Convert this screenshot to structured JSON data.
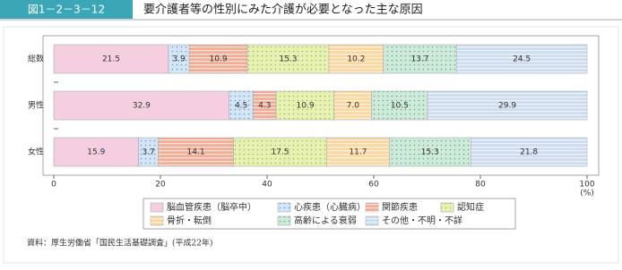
{
  "figure_label": "図1－2－3－12",
  "chart_data": {
    "type": "stacked-bar-horizontal",
    "title": "要介護者等の性別にみた介護が必要となった主な原因",
    "categories": [
      "総数",
      "男性",
      "女性"
    ],
    "series": [
      {
        "name": "脳血管疾患（脳卒中）",
        "color": "#f5cfe0",
        "values": [
          21.5,
          32.9,
          15.9
        ],
        "value_labels": [
          "21.5",
          "32.9",
          "15.9"
        ]
      },
      {
        "name": "心疾患（心臓病）",
        "color": "#d4e5f6",
        "values": [
          3.9,
          4.5,
          3.7
        ],
        "value_labels": [
          "3.9",
          "4.5",
          "3.7"
        ]
      },
      {
        "name": "関節疾患",
        "color": "#f1ad95",
        "values": [
          10.9,
          4.3,
          14.1
        ],
        "value_labels": [
          "10.9",
          "4.3",
          "14.1"
        ]
      },
      {
        "name": "認知症",
        "color": "#e7f1b6",
        "values": [
          15.3,
          10.9,
          17.5
        ],
        "value_labels": [
          "15.3",
          "10.9",
          "17.5"
        ]
      },
      {
        "name": "骨折・転倒",
        "color": "#fcd8a0",
        "values": [
          10.2,
          7.0,
          11.7
        ],
        "value_labels": [
          "10.2",
          "7.0",
          "11.7"
        ]
      },
      {
        "name": "高齢による衰弱",
        "color": "#cfe9da",
        "values": [
          13.7,
          10.5,
          15.3
        ],
        "value_labels": [
          "13.7",
          "10.5",
          "15.3"
        ]
      },
      {
        "name": "その他・不明・不詳",
        "color": "#cddcf1",
        "values": [
          24.5,
          29.9,
          21.8
        ],
        "value_labels": [
          "24.5",
          "29.9",
          "21.8"
        ]
      }
    ],
    "xlim": [
      0,
      100
    ],
    "xticks": [
      0,
      20,
      40,
      60,
      80,
      100
    ],
    "x_unit": "(%)",
    "source": "資料：厚生労働省「国民生活基礎調査」(平成22年)"
  }
}
